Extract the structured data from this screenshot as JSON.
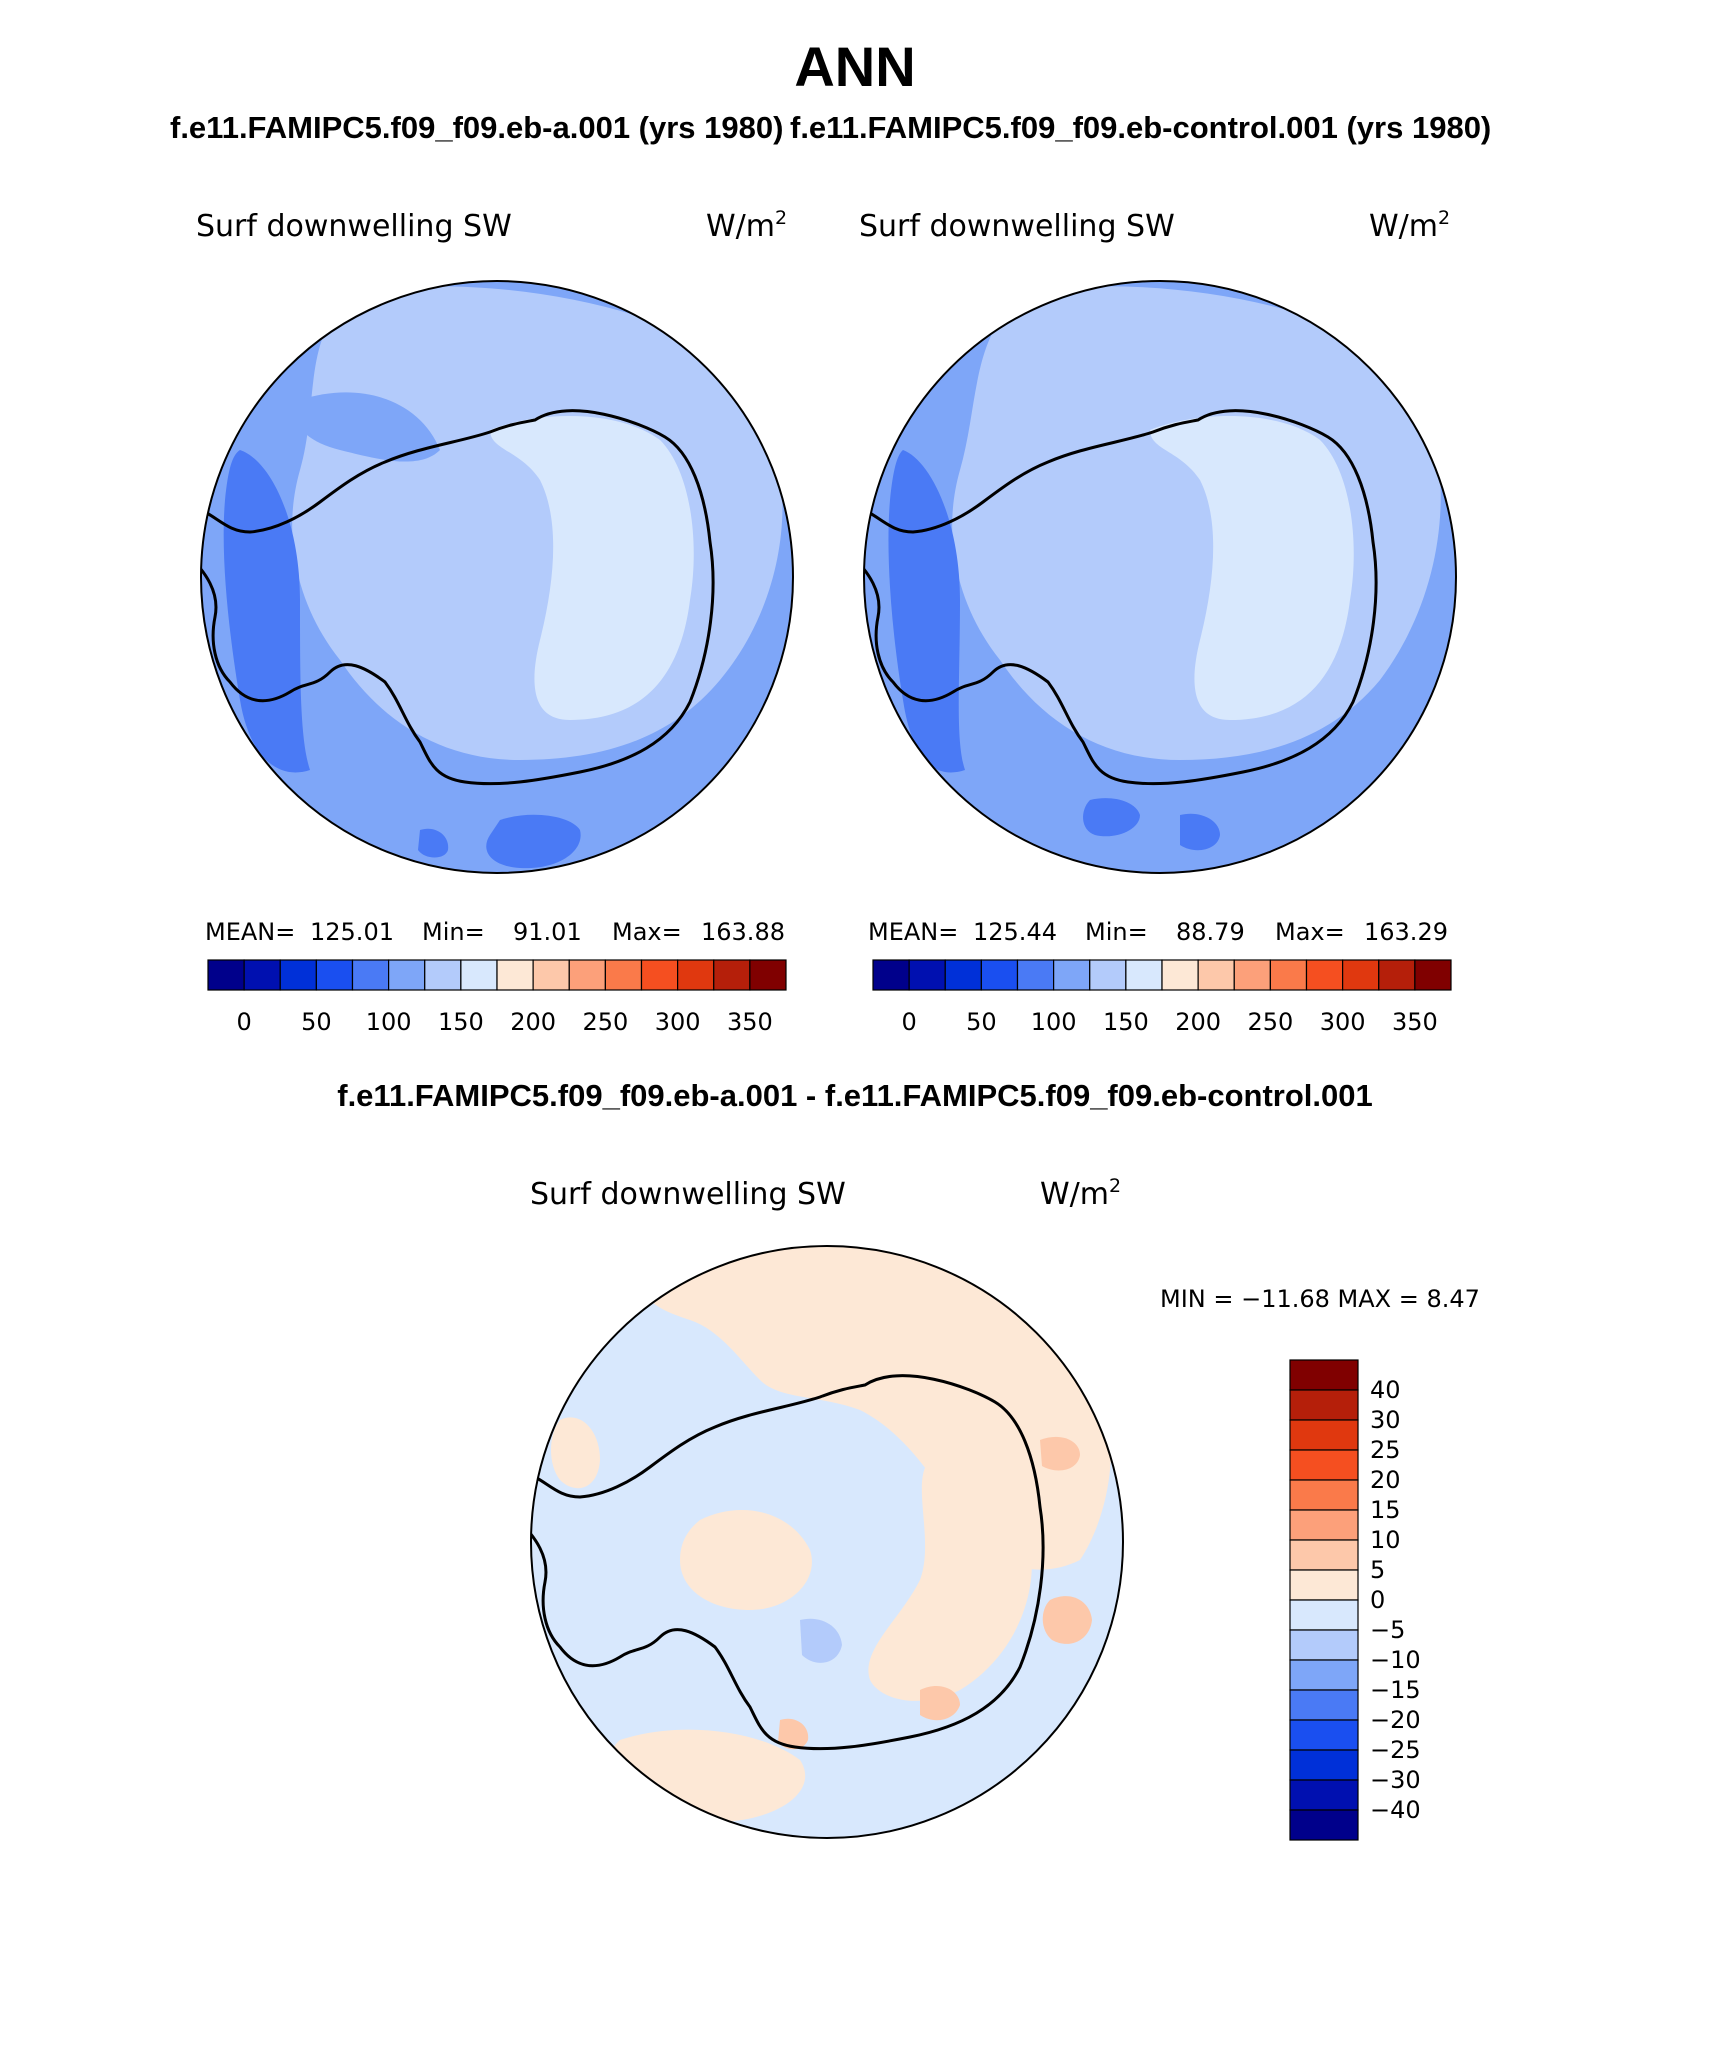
{
  "title": "ANN",
  "panels": [
    {
      "case": "f.e11.FAMIPC5.f09_f09.eb-a.001 (yrs 1980)",
      "variable": "Surf downwelling SW",
      "units_base": "W/m",
      "units_exp": "2",
      "stats": {
        "mean_label": "MEAN=",
        "mean": "125.01",
        "min_label": "Min=",
        "min": "91.01",
        "max_label": "Max=",
        "max": "163.88"
      }
    },
    {
      "case": "f.e11.FAMIPC5.f09_f09.eb-control.001 (yrs 1980)",
      "variable": "Surf downwelling SW",
      "units_base": "W/m",
      "units_exp": "2",
      "stats": {
        "mean_label": "MEAN=",
        "mean": "125.44",
        "min_label": "Min=",
        "min": "88.79",
        "max_label": "Max=",
        "max": "163.29"
      }
    }
  ],
  "colorbar_abs": {
    "colors": [
      "#00008b",
      "#0010b0",
      "#0030d8",
      "#1a4ff0",
      "#4a7af5",
      "#7ea6f8",
      "#b3cbfb",
      "#d8e8fd",
      "#fde8d6",
      "#fdc8aa",
      "#fca07a",
      "#fa7a4a",
      "#f54f20",
      "#e0380f",
      "#b51f0a",
      "#800000"
    ],
    "tick_labels": [
      "0",
      "50",
      "100",
      "150",
      "200",
      "250",
      "300",
      "350"
    ]
  },
  "diff": {
    "title": "f.e11.FAMIPC5.f09_f09.eb-a.001 - f.e11.FAMIPC5.f09_f09.eb-control.001",
    "variable": "Surf downwelling SW",
    "units_base": "W/m",
    "units_exp": "2",
    "minmax_text": "MIN = −11.68 MAX =    8.47"
  },
  "colorbar_diff": {
    "colors": [
      "#800000",
      "#b51f0a",
      "#e0380f",
      "#f54f20",
      "#fa7a4a",
      "#fca07a",
      "#fdc8aa",
      "#fde8d6",
      "#d8e8fd",
      "#b3cbfb",
      "#7ea6f8",
      "#4a7af5",
      "#1a4ff0",
      "#0030d8",
      "#0010b0",
      "#00008b"
    ],
    "tick_labels": [
      "40",
      "30",
      "25",
      "20",
      "15",
      "10",
      "5",
      "0",
      "−5",
      "−10",
      "−15",
      "−20",
      "−25",
      "−30",
      "−40"
    ]
  }
}
